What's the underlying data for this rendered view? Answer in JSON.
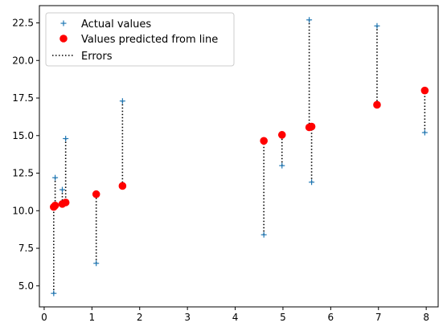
{
  "chart_data": {
    "type": "scatter",
    "xlim": [
      -0.1,
      8.25
    ],
    "ylim": [
      3.6,
      23.65
    ],
    "xticks": [
      0,
      1,
      2,
      3,
      4,
      5,
      6,
      7,
      8
    ],
    "xtick_labels": [
      "0",
      "1",
      "2",
      "3",
      "4",
      "5",
      "6",
      "7",
      "8"
    ],
    "yticks": [
      5.0,
      7.5,
      10.0,
      12.5,
      15.0,
      17.5,
      20.0,
      22.5
    ],
    "ytick_labels": [
      "5.0",
      "7.5",
      "10.0",
      "12.5",
      "15.0",
      "17.5",
      "20.0",
      "22.5"
    ],
    "grid": false,
    "legend_position": "top-left",
    "x": [
      0.2,
      0.23,
      0.38,
      0.45,
      1.09,
      1.64,
      4.6,
      4.98,
      5.55,
      5.6,
      6.97,
      7.97
    ],
    "series": [
      {
        "name": "Actual values",
        "marker": "plus",
        "color": "#1f77b4",
        "values": [
          4.5,
          12.2,
          11.4,
          14.8,
          6.5,
          17.3,
          8.4,
          13.0,
          22.7,
          11.9,
          22.3,
          15.2
        ]
      },
      {
        "name": "Values predicted from line",
        "marker": "circle",
        "color": "#ff0000",
        "values": [
          10.25,
          10.35,
          10.45,
          10.55,
          11.1,
          11.65,
          14.65,
          15.05,
          15.55,
          15.6,
          17.05,
          18.0
        ]
      },
      {
        "name": "Errors",
        "marker": "dotted-line",
        "color": "#000000"
      }
    ]
  }
}
